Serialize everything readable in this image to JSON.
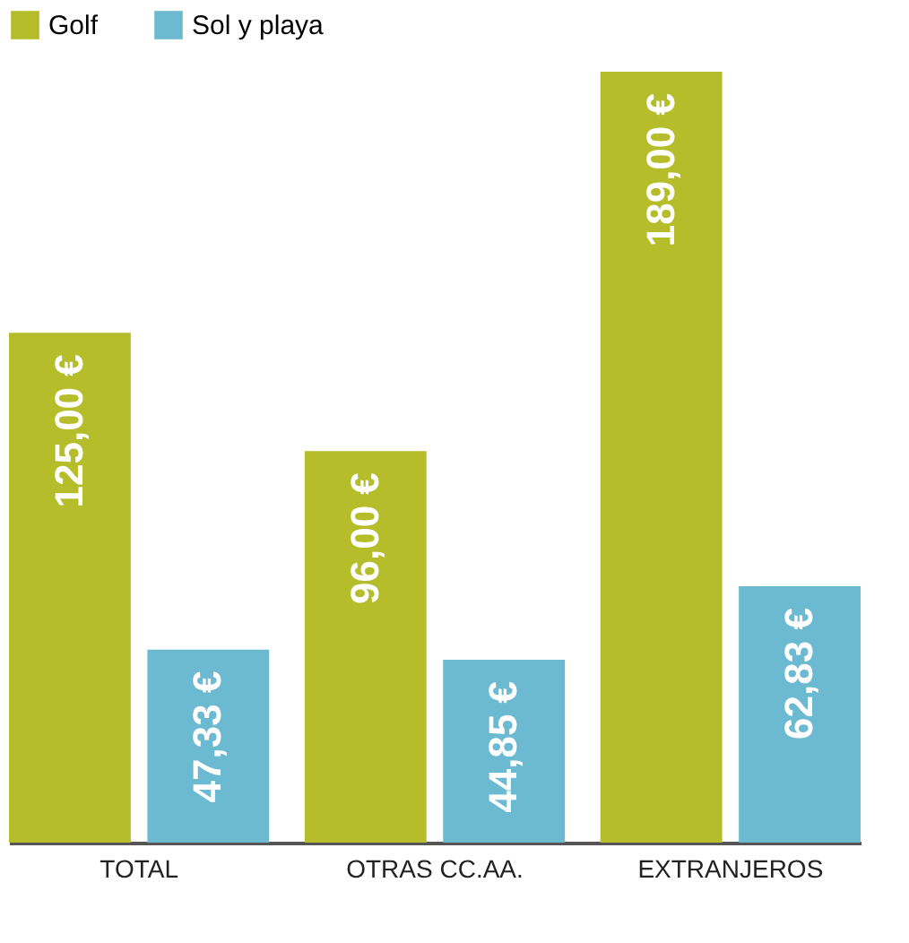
{
  "chart_data": {
    "type": "bar",
    "categories": [
      "TOTAL",
      "OTRAS CC.AA.",
      "EXTRANJEROS"
    ],
    "series": [
      {
        "name": "Golf",
        "color": "#b5bd2a",
        "values": [
          125,
          96,
          189
        ],
        "value_labels": [
          "125,00 €",
          "96,00 €",
          "189,00 €"
        ]
      },
      {
        "name": "Sol y playa",
        "color": "#6cbad2",
        "values": [
          47.33,
          44.85,
          62.83
        ],
        "value_labels": [
          "47,33 €",
          "44,85 €",
          "62,83 €"
        ]
      }
    ],
    "legend": "top",
    "grid": false
  }
}
